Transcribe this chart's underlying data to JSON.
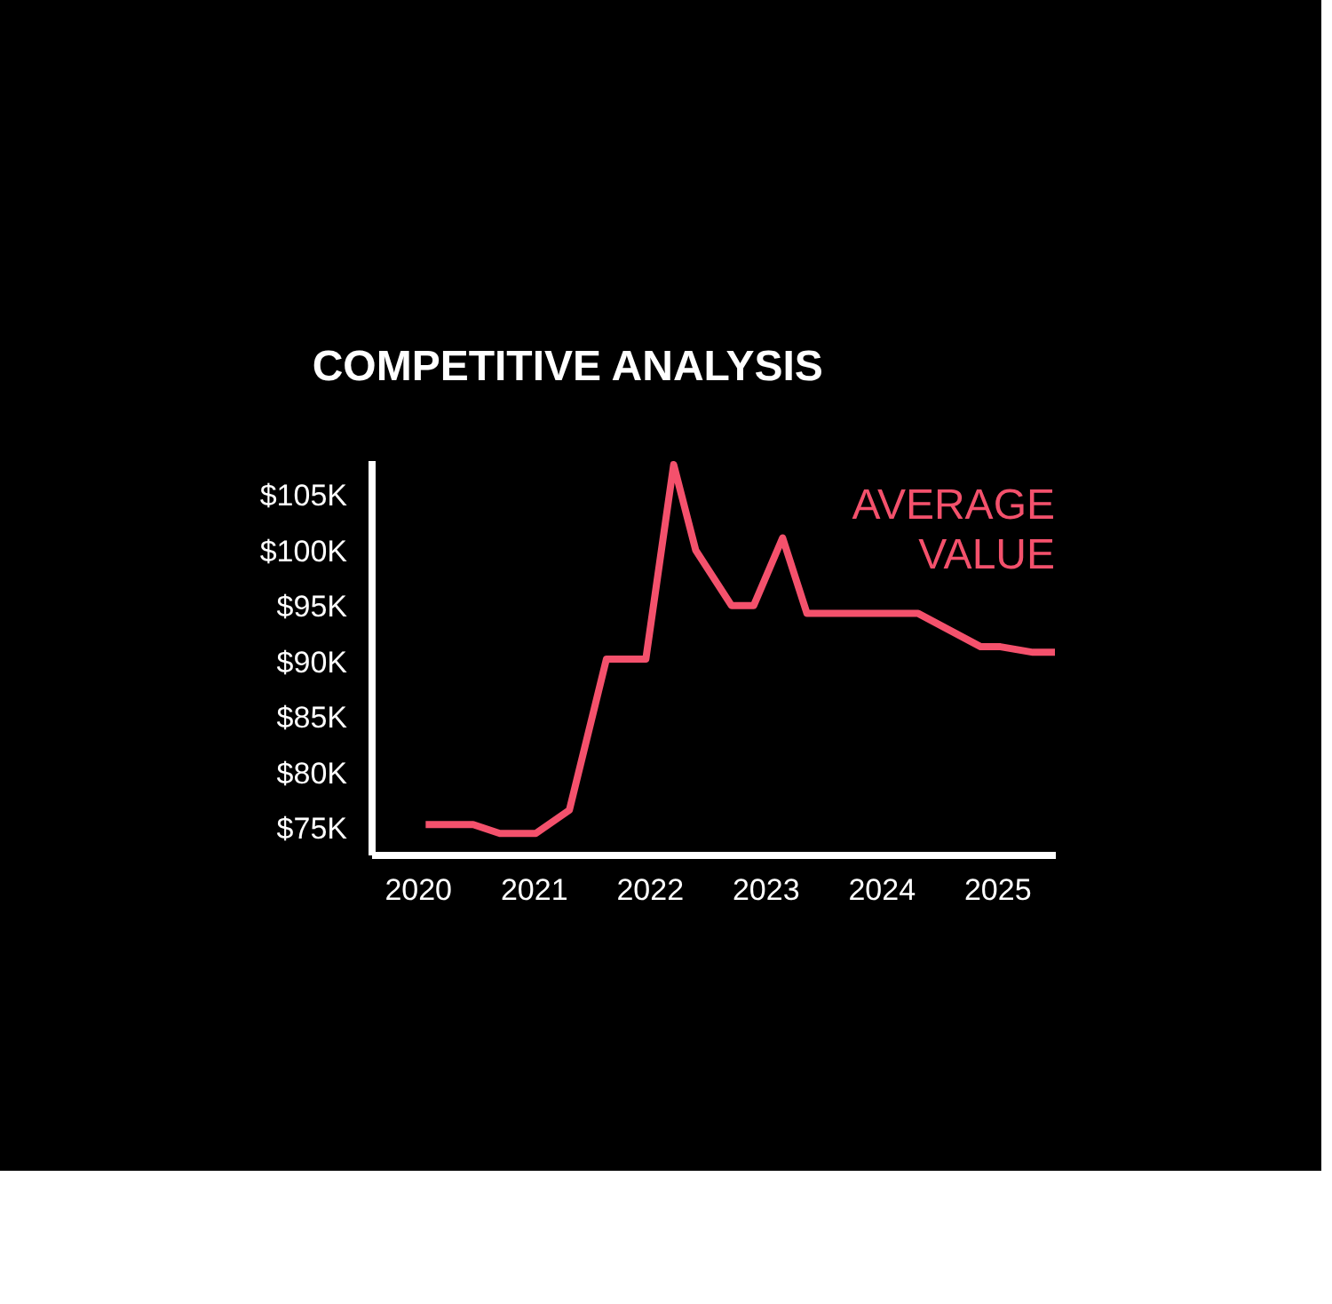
{
  "chart_data": {
    "type": "line",
    "title": "COMPETITIVE ANALYSIS",
    "x": [
      2020.07,
      2020.48,
      2020.71,
      2021.02,
      2021.31,
      2021.63,
      2021.97,
      2022.21,
      2022.4,
      2022.71,
      2022.9,
      2023.15,
      2023.36,
      2024.32,
      2024.86,
      2025.03,
      2025.31,
      2025.5
    ],
    "series": [
      {
        "name": "AVERAGE VALUE",
        "color": "#f4516c",
        "values": [
          75400,
          75400,
          74600,
          74600,
          76700,
          90300,
          90300,
          107800,
          100100,
          95100,
          95100,
          101200,
          94400,
          94400,
          91400,
          91400,
          90900,
          90900
        ]
      }
    ],
    "xlim": [
      2019.6,
      2025.5
    ],
    "xticks": [
      2020,
      2021,
      2022,
      2023,
      2024,
      2025
    ],
    "ylim": [
      72700,
      108200
    ],
    "yticks": [
      {
        "value": 75000,
        "label": "$75K"
      },
      {
        "value": 80000,
        "label": "$80K"
      },
      {
        "value": 85000,
        "label": "$85K"
      },
      {
        "value": 90000,
        "label": "$90K"
      },
      {
        "value": 95000,
        "label": "$95K"
      },
      {
        "value": 100000,
        "label": "$100K"
      },
      {
        "value": 105000,
        "label": "$105K"
      }
    ]
  }
}
